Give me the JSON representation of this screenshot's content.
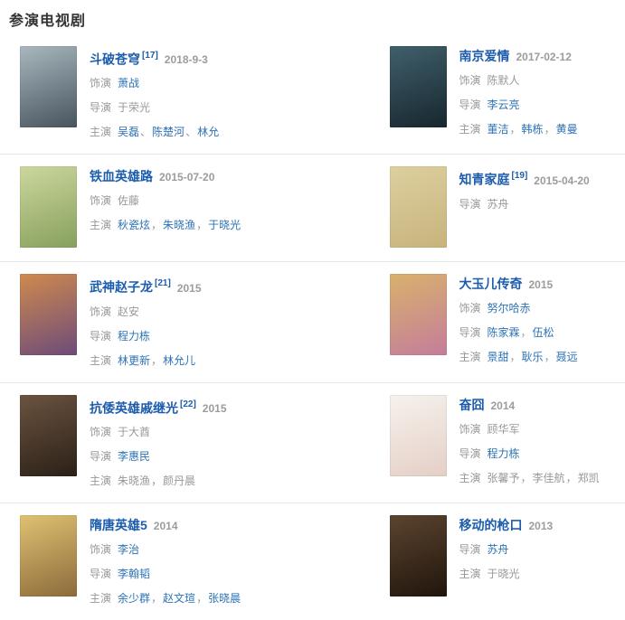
{
  "page": {
    "title": "参演电视剧"
  },
  "colors": {
    "title_link": "#1c5cac",
    "person_link": "#2d73b6",
    "muted_text": "#999999",
    "heading_text": "#333333",
    "divider": "#e7e7e7"
  },
  "entries": [
    {
      "title": "斗破苍穹",
      "ref": "[17]",
      "date": "2018-9-3",
      "poster": {
        "name": "doupo-cangqiong-poster",
        "colors": [
          "#a9b7bf",
          "#47545d"
        ]
      },
      "credits": [
        {
          "label": "饰演",
          "sep": "、",
          "names": [
            {
              "text": "萧战",
              "link": true
            }
          ]
        },
        {
          "label": "导演",
          "sep": "、",
          "names": [
            {
              "text": "于荣光",
              "link": false
            }
          ]
        },
        {
          "label": "主演",
          "sep": "、",
          "names": [
            {
              "text": "吴磊",
              "link": true
            },
            {
              "text": "陈楚河",
              "link": true
            },
            {
              "text": "林允",
              "link": true
            }
          ]
        }
      ]
    },
    {
      "title": "南京爱情",
      "ref": "",
      "date": "2017-02-12",
      "poster": {
        "name": "nanjing-aiqing-poster",
        "colors": [
          "#40606c",
          "#17262e"
        ]
      },
      "credits": [
        {
          "label": "饰演",
          "sep": "，",
          "names": [
            {
              "text": "陈默人",
              "link": false
            }
          ]
        },
        {
          "label": "导演",
          "sep": "，",
          "names": [
            {
              "text": "李云亮",
              "link": true
            }
          ]
        },
        {
          "label": "主演",
          "sep": "，",
          "names": [
            {
              "text": "董洁",
              "link": true
            },
            {
              "text": "韩栋",
              "link": true
            },
            {
              "text": "黄曼",
              "link": true
            }
          ]
        }
      ]
    },
    {
      "title": "铁血英雄路",
      "ref": "",
      "date": "2015-07-20",
      "poster": {
        "name": "tiexue-yingxionglu-poster",
        "colors": [
          "#ccd79e",
          "#87a05c"
        ]
      },
      "credits": [
        {
          "label": "饰演",
          "sep": "，",
          "names": [
            {
              "text": "佐藤",
              "link": false
            }
          ]
        },
        {
          "label": "主演",
          "sep": "，",
          "names": [
            {
              "text": "秋瓷炫",
              "link": true
            },
            {
              "text": "朱晓渔",
              "link": true
            },
            {
              "text": "于晓光",
              "link": true
            }
          ]
        }
      ]
    },
    {
      "title": "知青家庭",
      "ref": "[19]",
      "date": "2015-04-20",
      "poster": {
        "name": "zhiqing-jiating-poster",
        "colors": [
          "#ddcf9f",
          "#c7b47c"
        ]
      },
      "credits": [
        {
          "label": "导演",
          "sep": "，",
          "names": [
            {
              "text": "苏舟",
              "link": false
            }
          ]
        }
      ]
    },
    {
      "title": "武神赵子龙",
      "ref": "[21]",
      "date": "2015",
      "poster": {
        "name": "wushen-zhaozilong-poster",
        "colors": [
          "#cf8a4e",
          "#6d4b79"
        ]
      },
      "credits": [
        {
          "label": "饰演",
          "sep": "，",
          "names": [
            {
              "text": "赵安",
              "link": false
            }
          ]
        },
        {
          "label": "导演",
          "sep": "，",
          "names": [
            {
              "text": "程力栋",
              "link": true
            }
          ]
        },
        {
          "label": "主演",
          "sep": "，",
          "names": [
            {
              "text": "林更新",
              "link": true
            },
            {
              "text": "林允儿",
              "link": true
            }
          ]
        }
      ]
    },
    {
      "title": "大玉儿传奇",
      "ref": "",
      "date": "2015",
      "poster": {
        "name": "dayuer-chuanqi-poster",
        "colors": [
          "#d9b16c",
          "#c47d9b"
        ]
      },
      "credits": [
        {
          "label": "饰演",
          "sep": "，",
          "names": [
            {
              "text": "努尔哈赤",
              "link": true
            }
          ]
        },
        {
          "label": "导演",
          "sep": "，",
          "names": [
            {
              "text": "陈家霖",
              "link": true
            },
            {
              "text": "伍松",
              "link": true
            }
          ]
        },
        {
          "label": "主演",
          "sep": "，",
          "names": [
            {
              "text": "景甜",
              "link": true
            },
            {
              "text": "耿乐",
              "link": true
            },
            {
              "text": "聂远",
              "link": true
            }
          ]
        }
      ]
    },
    {
      "title": "抗倭英雄戚继光",
      "ref": "[22]",
      "date": "2015",
      "poster": {
        "name": "kangwo-qijiguang-poster",
        "colors": [
          "#6b5340",
          "#2b2017"
        ]
      },
      "credits": [
        {
          "label": "饰演",
          "sep": "，",
          "names": [
            {
              "text": "于大酋",
              "link": false
            }
          ]
        },
        {
          "label": "导演",
          "sep": "，",
          "names": [
            {
              "text": "李惠民",
              "link": true
            }
          ]
        },
        {
          "label": "主演",
          "sep": "，",
          "names": [
            {
              "text": "朱晓渔",
              "link": false
            },
            {
              "text": "颜丹晨",
              "link": false
            }
          ]
        }
      ]
    },
    {
      "title": "奋囧",
      "ref": "",
      "date": "2014",
      "poster": {
        "name": "fenjiong-poster",
        "colors": [
          "#f6f2ed",
          "#e4cfc6"
        ]
      },
      "credits": [
        {
          "label": "饰演",
          "sep": "，",
          "names": [
            {
              "text": "顾华军",
              "link": false
            }
          ]
        },
        {
          "label": "导演",
          "sep": "，",
          "names": [
            {
              "text": "程力栋",
              "link": true
            }
          ]
        },
        {
          "label": "主演",
          "sep": "，",
          "names": [
            {
              "text": "张馨予",
              "link": false
            },
            {
              "text": "李佳航",
              "link": false
            },
            {
              "text": "郑凯",
              "link": false
            }
          ]
        }
      ]
    },
    {
      "title": "隋唐英雄5",
      "ref": "",
      "date": "2014",
      "poster": {
        "name": "suitang-yingxiong5-poster",
        "colors": [
          "#e0c172",
          "#8c6b3b"
        ]
      },
      "credits": [
        {
          "label": "饰演",
          "sep": "，",
          "names": [
            {
              "text": "李治",
              "link": true
            }
          ]
        },
        {
          "label": "导演",
          "sep": "，",
          "names": [
            {
              "text": "李翰韬",
              "link": true
            }
          ]
        },
        {
          "label": "主演",
          "sep": "，",
          "names": [
            {
              "text": "余少群",
              "link": true
            },
            {
              "text": "赵文瑄",
              "link": true
            },
            {
              "text": "张晓晨",
              "link": true
            }
          ]
        }
      ]
    },
    {
      "title": "移动的枪口",
      "ref": "",
      "date": "2013",
      "poster": {
        "name": "yidong-de-qiangkou-poster",
        "colors": [
          "#5c442f",
          "#20150c"
        ]
      },
      "credits": [
        {
          "label": "导演",
          "sep": "，",
          "names": [
            {
              "text": "苏舟",
              "link": true
            }
          ]
        },
        {
          "label": "主演",
          "sep": "，",
          "names": [
            {
              "text": "于晓光",
              "link": false
            }
          ]
        }
      ]
    }
  ]
}
